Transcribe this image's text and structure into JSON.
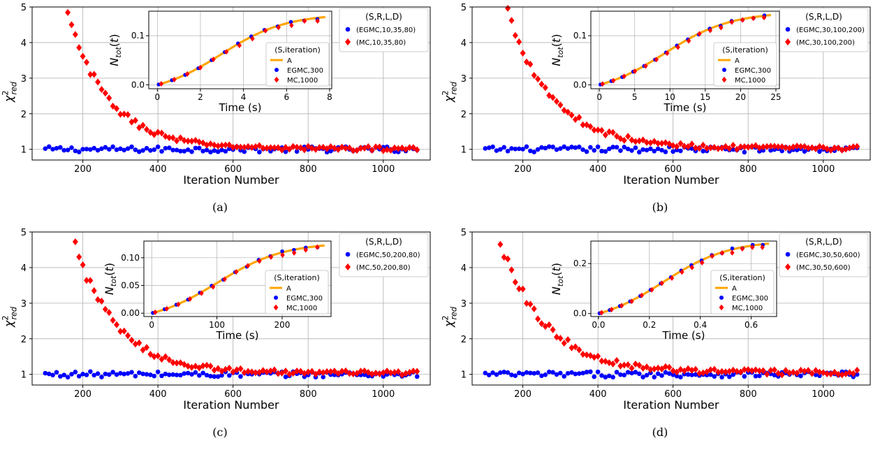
{
  "chart_data": [
    {
      "type": "scatter",
      "caption": "(a)",
      "xlabel": "Iteration Number",
      "ylabel": "χ²red",
      "xlim": [
        65,
        1125
      ],
      "ylim": [
        0.7,
        5
      ],
      "xticks": [
        200,
        400,
        600,
        800,
        1000
      ],
      "yticks": [
        1,
        2,
        3,
        4,
        5
      ],
      "grid": true,
      "legend_title": "(S,R,L,D)",
      "legend_position": "top-right",
      "series": [
        {
          "name": "(EGMC,10,35,80)",
          "color": "#0000ff",
          "marker": "circle",
          "mode": "flat",
          "x_start": 100,
          "x_end": 1090,
          "x_step": 10,
          "level": 1.0,
          "noise": 0.08
        },
        {
          "name": "(MC,10,35,80)",
          "color": "#ff0000",
          "marker": "diamond",
          "mode": "decay",
          "x_start": 150,
          "x_end": 1090,
          "x_step": 10,
          "decay_from": 5.1,
          "decay_tau": 110,
          "level": 1.02,
          "noise": 0.06
        }
      ],
      "inset": {
        "xlabel": "Time (s)",
        "ylabel": "Ntot(t)",
        "xlim": [
          -0.4,
          8.1
        ],
        "ylim": [
          -0.008,
          0.15
        ],
        "xticks": [
          0,
          2,
          4,
          6,
          8
        ],
        "yticks": [
          0.0,
          0.1
        ],
        "ytick_labels": [
          "0.0",
          "0.1"
        ],
        "legend_title": "(S,iteration)",
        "legend_position": "lower-right",
        "xmax": 7.8,
        "ymax": 0.138,
        "points": 13,
        "series": [
          {
            "name": "A",
            "color": "#ffa500",
            "kind": "line"
          },
          {
            "name": "EGMC,300",
            "color": "#0000ff",
            "kind": "circle"
          },
          {
            "name": "MC,1000",
            "color": "#ff0000",
            "kind": "diamond"
          }
        ]
      }
    },
    {
      "type": "scatter",
      "caption": "(b)",
      "xlabel": "Iteration Number",
      "ylabel": "χ²red",
      "xlim": [
        65,
        1125
      ],
      "ylim": [
        0.7,
        5
      ],
      "xticks": [
        200,
        400,
        600,
        800,
        1000
      ],
      "yticks": [
        1,
        2,
        3,
        4,
        5
      ],
      "grid": true,
      "legend_title": "(S,R,L,D)",
      "legend_position": "top-right",
      "series": [
        {
          "name": "(EGMC,30,100,200)",
          "color": "#0000ff",
          "marker": "circle",
          "mode": "flat",
          "x_start": 100,
          "x_end": 1090,
          "x_step": 10,
          "level": 1.0,
          "noise": 0.08
        },
        {
          "name": "(MC,30,100,200)",
          "color": "#ff0000",
          "marker": "diamond",
          "mode": "decay",
          "x_start": 160,
          "x_end": 1090,
          "x_step": 10,
          "decay_from": 4.9,
          "decay_tau": 120,
          "level": 1.03,
          "noise": 0.06
        }
      ],
      "inset": {
        "xlabel": "Time (s)",
        "ylabel": "Ntot(t)",
        "xlim": [
          -1.2,
          25.5
        ],
        "ylim": [
          -0.008,
          0.15
        ],
        "xticks": [
          0,
          5,
          10,
          15,
          20,
          25
        ],
        "yticks": [
          0.0,
          0.1
        ],
        "ytick_labels": [
          "0.0",
          "0.1"
        ],
        "legend_title": "(S,iteration)",
        "legend_position": "lower-right",
        "xmax": 24.3,
        "ymax": 0.142,
        "points": 16,
        "series": [
          {
            "name": "A",
            "color": "#ffa500",
            "kind": "line"
          },
          {
            "name": "EGMC,300",
            "color": "#0000ff",
            "kind": "circle"
          },
          {
            "name": "MC,1000",
            "color": "#ff0000",
            "kind": "diamond"
          }
        ]
      }
    },
    {
      "type": "scatter",
      "caption": "(c)",
      "xlabel": "Iteration Number",
      "ylabel": "χ²red",
      "xlim": [
        65,
        1125
      ],
      "ylim": [
        0.7,
        5
      ],
      "xticks": [
        200,
        400,
        600,
        800,
        1000
      ],
      "yticks": [
        1,
        2,
        3,
        4,
        5
      ],
      "grid": true,
      "legend_title": "(S,R,L,D)",
      "legend_position": "top-right",
      "series": [
        {
          "name": "(EGMC,50,200,80)",
          "color": "#0000ff",
          "marker": "circle",
          "mode": "flat",
          "x_start": 100,
          "x_end": 1090,
          "x_step": 10,
          "level": 1.0,
          "noise": 0.08
        },
        {
          "name": "(MC,50,200,80)",
          "color": "#ff0000",
          "marker": "diamond",
          "mode": "decay",
          "x_start": 180,
          "x_end": 1090,
          "x_step": 10,
          "decay_from": 4.65,
          "decay_tau": 110,
          "level": 1.04,
          "noise": 0.06
        }
      ],
      "inset": {
        "xlabel": "Time (s)",
        "ylabel": "Ntot(t)",
        "xlim": [
          -12,
          275
        ],
        "ylim": [
          -0.006,
          0.13
        ],
        "xticks": [
          0,
          100,
          200
        ],
        "yticks": [
          0.0,
          0.05,
          0.1
        ],
        "ytick_labels": [
          "0.00",
          "0.05",
          "0.10"
        ],
        "legend_title": "(S,iteration)",
        "legend_position": "lower-right",
        "xmax": 265,
        "ymax": 0.122,
        "points": 15,
        "series": [
          {
            "name": "A",
            "color": "#ffa500",
            "kind": "line"
          },
          {
            "name": "EGMC,300",
            "color": "#0000ff",
            "kind": "circle"
          },
          {
            "name": "MC,1000",
            "color": "#ff0000",
            "kind": "diamond"
          }
        ]
      }
    },
    {
      "type": "scatter",
      "caption": "(d)",
      "xlabel": "Iteration Number",
      "ylabel": "χ²red",
      "xlim": [
        65,
        1125
      ],
      "ylim": [
        0.7,
        5
      ],
      "xticks": [
        200,
        400,
        600,
        800,
        1000
      ],
      "yticks": [
        1,
        2,
        3,
        4,
        5
      ],
      "grid": true,
      "legend_title": "(S,R,L,D)",
      "legend_position": "top-right",
      "series": [
        {
          "name": "(EGMC,30,50,600)",
          "color": "#0000ff",
          "marker": "circle",
          "mode": "flat",
          "x_start": 100,
          "x_end": 1090,
          "x_step": 10,
          "level": 1.0,
          "noise": 0.08
        },
        {
          "name": "(MC,30,50,600)",
          "color": "#ff0000",
          "marker": "diamond",
          "mode": "decay",
          "x_start": 130,
          "x_end": 1090,
          "x_step": 10,
          "decay_from": 5.1,
          "decay_tau": 120,
          "level": 1.05,
          "noise": 0.07
        }
      ],
      "inset": {
        "xlabel": "Time (s)",
        "ylabel": "Ntot(t)",
        "xlim": [
          -0.03,
          0.7
        ],
        "ylim": [
          -0.012,
          0.29
        ],
        "xticks": [
          0.0,
          0.2,
          0.4,
          0.6
        ],
        "xtick_labels": [
          "0.0",
          "0.2",
          "0.4",
          "0.6"
        ],
        "yticks": [
          0.0,
          0.2
        ],
        "ytick_labels": [
          "0.0",
          "0.2"
        ],
        "legend_title": "(S,iteration)",
        "legend_position": "lower-right",
        "xmax": 0.67,
        "ymax": 0.28,
        "points": 17,
        "series": [
          {
            "name": "A",
            "color": "#ffa500",
            "kind": "line"
          },
          {
            "name": "EGMC,300",
            "color": "#0000ff",
            "kind": "circle"
          },
          {
            "name": "MC,1000",
            "color": "#ff0000",
            "kind": "diamond"
          }
        ]
      }
    }
  ]
}
